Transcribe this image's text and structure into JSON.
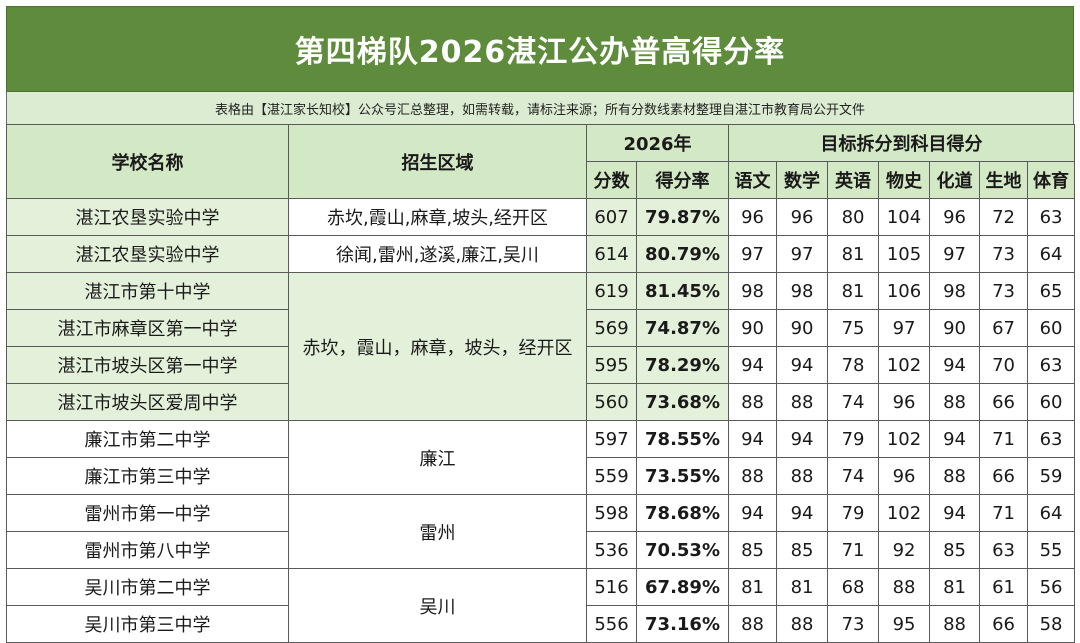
{
  "title": "第四梯队2026湛江公办普高得分率",
  "note": "表格由【湛江家长知校】公众号汇总整理，如需转载，请标注来源；所有分数线素材整理自湛江市教育局公开文件",
  "headers": {
    "school": "学校名称",
    "region": "招生区域",
    "year": "2026年",
    "target": "目标拆分到科目得分",
    "score": "分数",
    "rate": "得分率",
    "subjects": [
      "语文",
      "数学",
      "英语",
      "物史",
      "化道",
      "生地",
      "体育"
    ]
  },
  "regions": {
    "r1": "赤坎,霞山,麻章,坡头,经开区",
    "r2": "徐闻,雷州,遂溪,廉江,吴川",
    "r3": "赤坎，霞山，麻章，坡头，经开区",
    "r4": "廉江",
    "r5": "雷州",
    "r6": "吴川"
  },
  "rows": [
    {
      "school": "湛江农垦实验中学",
      "score": "607",
      "rate": "79.87%",
      "subjects": [
        "96",
        "96",
        "80",
        "104",
        "96",
        "72",
        "63"
      ]
    },
    {
      "school": "湛江农垦实验中学",
      "score": "614",
      "rate": "80.79%",
      "subjects": [
        "97",
        "97",
        "81",
        "105",
        "97",
        "73",
        "64"
      ]
    },
    {
      "school": "湛江市第十中学",
      "score": "619",
      "rate": "81.45%",
      "subjects": [
        "98",
        "98",
        "81",
        "106",
        "98",
        "73",
        "65"
      ]
    },
    {
      "school": "湛江市麻章区第一中学",
      "score": "569",
      "rate": "74.87%",
      "subjects": [
        "90",
        "90",
        "75",
        "97",
        "90",
        "67",
        "60"
      ]
    },
    {
      "school": "湛江市坡头区第一中学",
      "score": "595",
      "rate": "78.29%",
      "subjects": [
        "94",
        "94",
        "78",
        "102",
        "94",
        "70",
        "63"
      ]
    },
    {
      "school": "湛江市坡头区爱周中学",
      "score": "560",
      "rate": "73.68%",
      "subjects": [
        "88",
        "88",
        "74",
        "96",
        "88",
        "66",
        "60"
      ]
    },
    {
      "school": "廉江市第二中学",
      "score": "597",
      "rate": "78.55%",
      "subjects": [
        "94",
        "94",
        "79",
        "102",
        "94",
        "71",
        "63"
      ]
    },
    {
      "school": "廉江市第三中学",
      "score": "559",
      "rate": "73.55%",
      "subjects": [
        "88",
        "88",
        "74",
        "96",
        "88",
        "66",
        "59"
      ]
    },
    {
      "school": "雷州市第一中学",
      "score": "598",
      "rate": "78.68%",
      "subjects": [
        "94",
        "94",
        "79",
        "102",
        "94",
        "71",
        "64"
      ]
    },
    {
      "school": "雷州市第八中学",
      "score": "536",
      "rate": "70.53%",
      "subjects": [
        "85",
        "85",
        "71",
        "92",
        "85",
        "63",
        "55"
      ]
    },
    {
      "school": "吴川市第二中学",
      "score": "516",
      "rate": "67.89%",
      "subjects": [
        "81",
        "81",
        "68",
        "88",
        "81",
        "61",
        "56"
      ]
    },
    {
      "school": "吴川市第三中学",
      "score": "556",
      "rate": "73.16%",
      "subjects": [
        "88",
        "88",
        "73",
        "95",
        "88",
        "66",
        "58"
      ]
    }
  ],
  "colors": {
    "title_bg": "#5e8b3c",
    "header_bg": "#d3e8c4",
    "row_green": "#e4f1da",
    "rate_red": "#c0161a"
  }
}
